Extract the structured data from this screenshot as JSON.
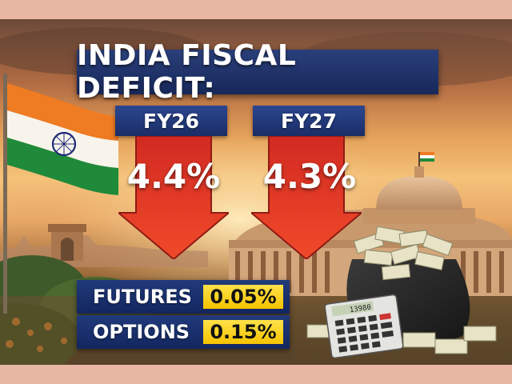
{
  "headline": "INDIA FISCAL DEFICIT:",
  "deficits": [
    {
      "year": "FY26",
      "value": "4.4%"
    },
    {
      "year": "FY27",
      "value": "4.3%"
    }
  ],
  "fees": [
    {
      "label": "FUTURES",
      "value": "0.05%"
    },
    {
      "label": "OPTIONS",
      "value": "0.15%"
    }
  ],
  "calculator_display": "13980",
  "colors": {
    "title_band": "#1b2c62",
    "arrow": "#e8352a",
    "fee_highlight": "#f5c400",
    "background_page": "#e8b8a4"
  },
  "icons": [
    "india-flag-icon",
    "down-arrow-icon",
    "money-bag-icon",
    "calculator-icon"
  ]
}
